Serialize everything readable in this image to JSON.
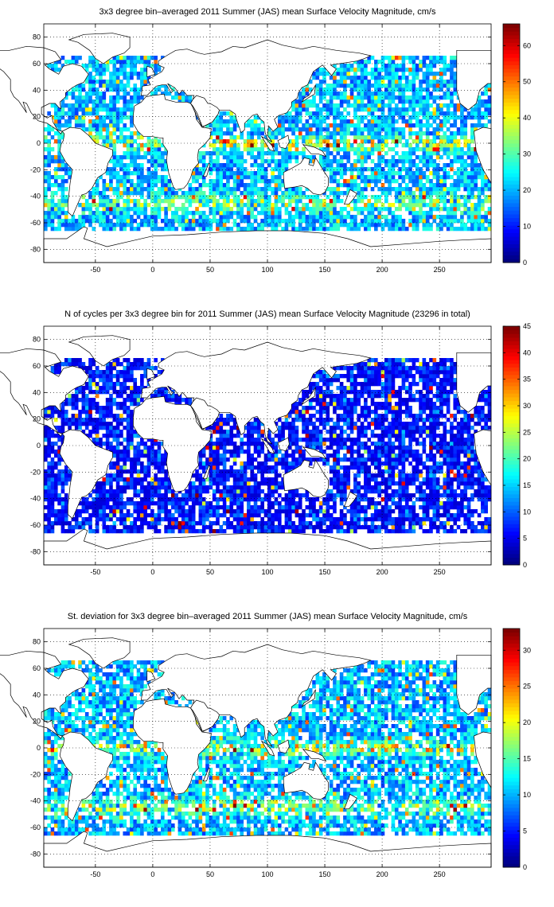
{
  "panels": [
    {
      "title": "3x3 degree bin–averaged 2011 Summer (JAS) mean Surface Velocity Magnitude, cm/s",
      "colorbar": {
        "min": 0,
        "max": 66,
        "ticks": [
          "0",
          "10",
          "20",
          "30",
          "40",
          "50",
          "60"
        ],
        "tick_values": [
          0,
          10,
          20,
          30,
          40,
          50,
          60
        ]
      },
      "field_scale": 66,
      "seed": 11
    },
    {
      "title": "N of cycles per 3x3 degree bin for 2011 Summer (JAS) mean Surface Velocity Magnitude (23296 in total)",
      "colorbar": {
        "min": 0,
        "max": 45,
        "ticks": [
          "0",
          "5",
          "10",
          "15",
          "20",
          "25",
          "30",
          "35",
          "40",
          "45"
        ],
        "tick_values": [
          0,
          5,
          10,
          15,
          20,
          25,
          30,
          35,
          40,
          45
        ]
      },
      "field_scale": 45,
      "seed": 29
    },
    {
      "title": "St. deviation for 3x3 degree bin–averaged 2011 Summer (JAS) mean Surface Velocity Magnitude, cm/s",
      "colorbar": {
        "min": 0,
        "max": 33,
        "ticks": [
          "0",
          "5",
          "10",
          "15",
          "20",
          "25",
          "30"
        ],
        "tick_values": [
          0,
          5,
          10,
          15,
          20,
          25,
          30
        ]
      },
      "field_scale": 33,
      "seed": 47
    }
  ],
  "map_axes": {
    "lon_range": [
      -95,
      295
    ],
    "lat_range": [
      -90,
      90
    ],
    "x_ticks": [
      "-50",
      "0",
      "50",
      "100",
      "150",
      "200",
      "250"
    ],
    "x_tick_values": [
      -50,
      0,
      50,
      100,
      150,
      200,
      250
    ],
    "y_ticks": [
      "80",
      "60",
      "40",
      "20",
      "0",
      "-20",
      "-40",
      "-60",
      "-80"
    ],
    "y_tick_values": [
      80,
      60,
      40,
      20,
      0,
      -20,
      -40,
      -60,
      -80
    ],
    "grid": true
  },
  "colormap": "jet",
  "colors": {
    "coastline": "#000000",
    "grid": "#000000"
  }
}
